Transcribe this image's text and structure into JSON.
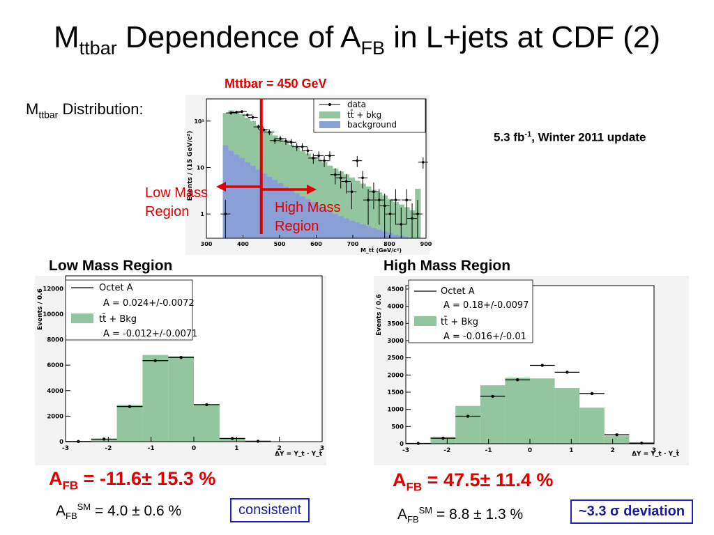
{
  "slide": {
    "title_pre": "M",
    "title_sub": "ttbar",
    "title_mid": " Dependence of A",
    "title_sub2": "FB",
    "title_post": " in L+jets at CDF (2)",
    "subhead_pre": "M",
    "subhead_sub": "ttbar",
    "subhead_post": " Distribution:",
    "lumi_pre": "5.3 fb",
    "lumi_sup": "-1",
    "lumi_post": ",  Winter 2011 update",
    "cut_label": "Mttbar = 450 GeV",
    "low_mass_label_1": "Low Mass",
    "low_mass_label_2": "Region",
    "high_mass_label_1": "High Mass",
    "high_mass_label_2": "Region",
    "panel_low_title": "Low Mass Region",
    "panel_high_title": "High Mass Region",
    "afb_low_pre": "A",
    "afb_low_sub": "FB",
    "afb_low_val": " = -11.6± 15.3 %",
    "afb_high_pre": "A",
    "afb_high_sub": "FB",
    "afb_high_val": " = 47.5± 11.4 %",
    "sm_low_pre": "A",
    "sm_low_sub": "FB",
    "sm_low_sup": "SM",
    "sm_low_val": " = 4.0 ± 0.6 %",
    "sm_high_pre": "A",
    "sm_high_sub": "FB",
    "sm_high_sup": "SM",
    "sm_high_val": " = 8.8 ± 1.3 %",
    "verdict_low": "consistent",
    "verdict_high": "~3.3 σ deviation",
    "colors": {
      "accent_red": "#e00000",
      "signal_green": "#93c69e",
      "background_blue": "#8a9fd6",
      "box_blue": "#2020c0"
    }
  },
  "chart_data": [
    {
      "type": "bar",
      "title": "",
      "xlabel": "M_tt̄ (GeV/c²)",
      "ylabel": "Events / (15 GeV/c²)",
      "y_scale": "log",
      "xlim": [
        300,
        900
      ],
      "ylim": [
        0.3,
        300
      ],
      "x_ticks": [
        "300",
        "400",
        "500",
        "600",
        "700",
        "800",
        "900"
      ],
      "y_ticks": [
        "1",
        "10",
        "10²"
      ],
      "cut_value": 450,
      "legend": [
        "data",
        "tt̄ + bkg",
        "background"
      ],
      "legend_position": "top-right",
      "bin_edges": [
        345,
        360,
        375,
        390,
        405,
        420,
        435,
        450,
        465,
        480,
        495,
        510,
        525,
        540,
        555,
        570,
        585,
        600,
        615,
        630,
        645,
        660,
        675,
        690,
        705,
        720,
        735,
        750,
        765,
        780,
        795,
        810,
        825,
        840,
        855,
        870,
        885,
        900
      ],
      "series": [
        {
          "name": "tt̄ + bkg",
          "values": [
            150,
            170,
            155,
            140,
            118,
            100,
            82,
            68,
            57,
            49,
            42,
            36,
            31,
            27,
            23,
            20,
            17,
            15,
            13,
            11,
            9.5,
            8.2,
            7.1,
            6.1,
            5.2,
            4.5,
            3.9,
            3.3,
            2.9,
            2.5,
            2.1,
            1.8,
            1.6,
            1.4,
            1.2,
            3.5
          ]
        },
        {
          "name": "background",
          "values": [
            30,
            23,
            19,
            16,
            13,
            11,
            9,
            7.5,
            6.3,
            5.4,
            4.6,
            3.9,
            3.3,
            2.8,
            2.4,
            2.1,
            1.8,
            1.5,
            1.3,
            1.15,
            1.0,
            0.9,
            0.8,
            0.72,
            0.66,
            0.6,
            0.55,
            0.5,
            0.46,
            0.42,
            0.39,
            0.36,
            0.34,
            0.32,
            0.31,
            0.3
          ]
        },
        {
          "name": "data",
          "x": [
            352,
            367,
            382,
            397,
            412,
            427,
            442,
            457,
            472,
            487,
            502,
            517,
            532,
            547,
            562,
            577,
            592,
            607,
            622,
            637,
            652,
            667,
            682,
            697,
            712,
            727,
            742,
            757,
            772,
            787,
            802,
            817,
            832,
            847,
            862,
            877,
            892
          ],
          "values": [
            1,
            150,
            155,
            160,
            135,
            120,
            75,
            65,
            58,
            38,
            42,
            37,
            35,
            28,
            28,
            23,
            16,
            18,
            14,
            18,
            7,
            6,
            5,
            3,
            14,
            6,
            2,
            3,
            2,
            1.5,
            1,
            2,
            0.6,
            2,
            0.8,
            1,
            13
          ]
        }
      ]
    },
    {
      "type": "bar",
      "title": "",
      "xlabel": "ΔY = Y_t - Y_t̄",
      "ylabel": "Events / 0.6",
      "xlim": [
        -3,
        3
      ],
      "ylim": [
        0,
        13000
      ],
      "x_ticks": [
        "-3",
        "-2",
        "-1",
        "0",
        "1",
        "2",
        "3"
      ],
      "y_ticks": [
        "0",
        "2000",
        "4000",
        "6000",
        "8000",
        "10000",
        "12000"
      ],
      "legend_lines": [
        "Octet A",
        "A = 0.024+/-0.0072",
        "tt̄ + Bkg",
        "A = -0.012+/-0.0071"
      ],
      "legend_position": "top",
      "bin_edges": [
        -3,
        -2.4,
        -1.8,
        -1.2,
        -0.6,
        0,
        0.6,
        1.2,
        1.8,
        2.4,
        3
      ],
      "series": [
        {
          "name": "tt̄ + Bkg",
          "values": [
            20,
            220,
            2900,
            6800,
            6700,
            2900,
            250,
            20,
            0,
            0
          ]
        },
        {
          "name": "data",
          "values": [
            10,
            200,
            2750,
            6350,
            6600,
            2900,
            250,
            30,
            0,
            0
          ]
        }
      ]
    },
    {
      "type": "bar",
      "title": "",
      "xlabel": "ΔY = Y_t - Y_t̄",
      "ylabel": "Events / 0.6",
      "xlim": [
        -3,
        3
      ],
      "ylim": [
        0,
        4600
      ],
      "x_ticks": [
        "-3",
        "-2",
        "-1",
        "0",
        "1",
        "2",
        "3"
      ],
      "y_ticks": [
        "0",
        "500",
        "1000",
        "1500",
        "2000",
        "2500",
        "3000",
        "3500",
        "4000",
        "4500"
      ],
      "legend_lines": [
        "Octet A",
        "A = 0.18+/-0.0097",
        "tt̄ + Bkg",
        "A = -0.016+/-0.01"
      ],
      "legend_position": "top",
      "bin_edges": [
        -3,
        -2.4,
        -1.8,
        -1.2,
        -0.6,
        0,
        0.6,
        1.2,
        1.8,
        2.4,
        3
      ],
      "series": [
        {
          "name": "tt̄ + Bkg",
          "values": [
            20,
            200,
            1100,
            1700,
            1920,
            1900,
            1620,
            1050,
            220,
            20
          ]
        },
        {
          "name": "data",
          "values": [
            10,
            160,
            800,
            1380,
            1860,
            2280,
            2080,
            1460,
            260,
            20
          ]
        }
      ]
    }
  ]
}
